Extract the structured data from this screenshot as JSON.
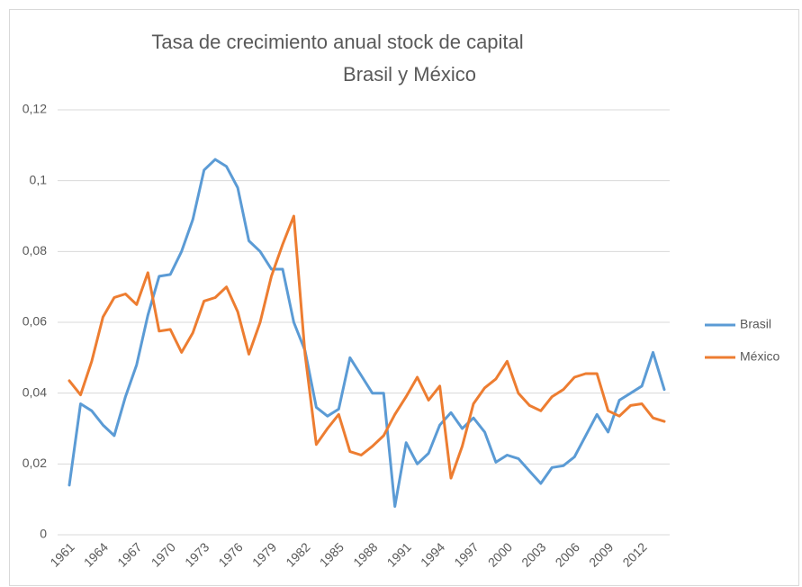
{
  "chart_data": {
    "type": "line",
    "title": [
      "Tasa de crecimiento anual stock de capital",
      "Brasil y México"
    ],
    "categories": [
      "1961",
      null,
      null,
      "1964",
      null,
      null,
      "1967",
      null,
      null,
      "1970",
      null,
      null,
      "1973",
      null,
      null,
      "1976",
      null,
      null,
      "1979",
      null,
      null,
      "1982",
      null,
      null,
      "1985",
      null,
      null,
      "1988",
      null,
      null,
      "1991",
      null,
      null,
      "1994",
      null,
      null,
      "1997",
      null,
      null,
      "2000",
      null,
      null,
      "2003",
      null,
      null,
      "2006",
      null,
      null,
      "2009",
      null,
      null,
      "2012",
      null,
      null
    ],
    "series": [
      {
        "name": "Brasil",
        "color": "#5b9bd5",
        "values": [
          0.014,
          0.037,
          0.035,
          0.031,
          0.028,
          0.039,
          0.048,
          0.062,
          0.073,
          0.0735,
          0.08,
          0.089,
          0.103,
          0.106,
          0.104,
          0.098,
          0.083,
          0.08,
          0.075,
          0.075,
          0.06,
          0.052,
          0.036,
          0.0335,
          0.0355,
          0.05,
          0.045,
          0.04,
          0.04,
          0.008,
          0.026,
          0.02,
          0.023,
          0.031,
          0.0345,
          0.03,
          0.033,
          0.029,
          0.0205,
          0.0225,
          0.0215,
          0.018,
          0.0145,
          0.019,
          0.0195,
          0.022,
          0.028,
          0.034,
          0.029,
          0.038,
          0.04,
          0.042,
          0.0515,
          0.041
        ]
      },
      {
        "name": "México",
        "color": "#ed7d31",
        "values": [
          0.0435,
          0.0395,
          0.049,
          0.0615,
          0.067,
          0.068,
          0.065,
          0.074,
          0.0575,
          0.058,
          0.0515,
          0.057,
          0.066,
          0.067,
          0.07,
          0.063,
          0.051,
          0.06,
          0.073,
          0.082,
          0.09,
          0.051,
          0.0255,
          0.03,
          0.034,
          0.0235,
          0.0225,
          0.025,
          0.028,
          0.034,
          0.039,
          0.0445,
          0.038,
          0.042,
          0.016,
          0.025,
          0.037,
          0.0415,
          0.044,
          0.049,
          0.04,
          0.0365,
          0.035,
          0.039,
          0.041,
          0.0445,
          0.0455,
          0.0455,
          0.035,
          0.0335,
          0.0365,
          0.037,
          0.033,
          0.032
        ]
      }
    ],
    "ylim": [
      0,
      0.12
    ],
    "yticks": [
      0,
      {
        "value": 0.02,
        "label": "0,02"
      },
      {
        "value": 0.04,
        "label": "0,04"
      },
      {
        "value": 0.06,
        "label": "0,06"
      },
      {
        "value": 0.08,
        "label": "0,08"
      },
      {
        "value": 0.1,
        "label": "0,1"
      },
      {
        "value": 0.12,
        "label": "0,12"
      }
    ],
    "grid": true,
    "legend": "right"
  }
}
